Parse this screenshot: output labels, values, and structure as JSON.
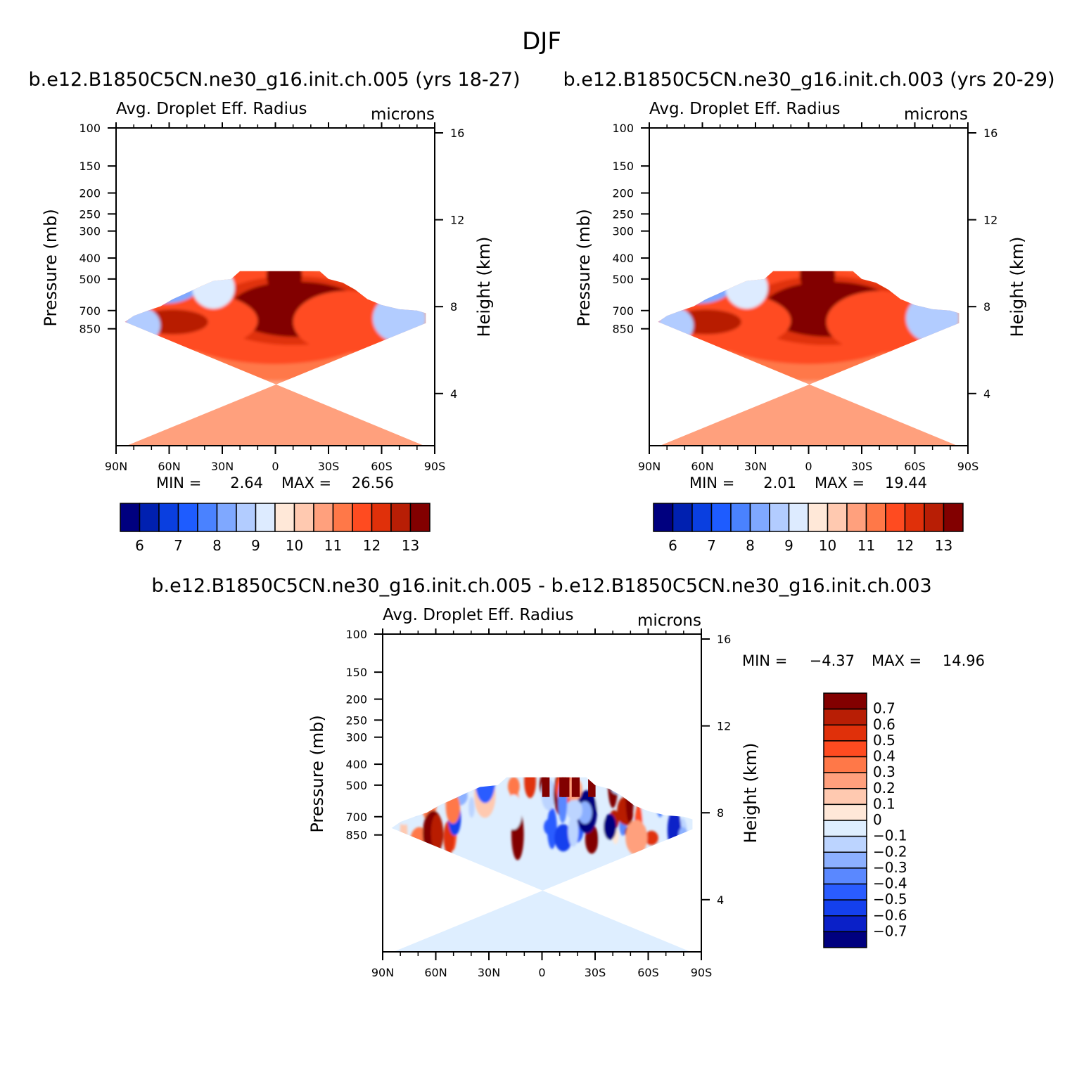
{
  "figure_title": "DJF",
  "colors": {
    "abs_scale": [
      "#00007f",
      "#0020b0",
      "#0a3fe0",
      "#1e5cff",
      "#4a82ff",
      "#7fa8ff",
      "#b2ccff",
      "#ddebff",
      "#ffe8d8",
      "#ffc9b0",
      "#ffa07d",
      "#ff7848",
      "#ff4b20",
      "#e0300a",
      "#b81e05",
      "#820000"
    ],
    "diff_scale": [
      "#00007f",
      "#0a20c8",
      "#1440ee",
      "#2a5cff",
      "#5a88ff",
      "#8cb0ff",
      "#bcd4ff",
      "#deeeff",
      "#ffe8d8",
      "#ffc9b0",
      "#ffa07d",
      "#ff7848",
      "#ff4b20",
      "#e0300a",
      "#b81e05",
      "#820000"
    ]
  },
  "chart_data": [
    {
      "type": "contour",
      "title": "b.e12.B1850C5CN.ne30_g16.init.ch.005 (yrs 18-27)",
      "subtitle_left": "Avg. Droplet Eff. Radius",
      "subtitle_right": "microns",
      "xlabel": "",
      "ylabel": "Pressure (mb)",
      "ylabel_right": "Height (km)",
      "x_ticks": [
        "90N",
        "60N",
        "30N",
        "0",
        "30S",
        "60S",
        "90S"
      ],
      "y_ticks": [
        "100",
        "150",
        "200",
        "250",
        "300",
        "400",
        "500",
        "700",
        "850"
      ],
      "y_right_ticks": [
        "16",
        "12",
        "8",
        "4"
      ],
      "ylim": [
        1000,
        100
      ],
      "scale": "log-pressure",
      "min_label": "MIN =",
      "min_value": "2.64",
      "max_label": "MAX =",
      "max_value": "26.56",
      "colorbar_labels": [
        "6",
        "7",
        "8",
        "9",
        "10",
        "11",
        "12",
        "13"
      ]
    },
    {
      "type": "contour",
      "title": "b.e12.B1850C5CN.ne30_g16.init.ch.003 (yrs 20-29)",
      "subtitle_left": "Avg. Droplet Eff. Radius",
      "subtitle_right": "microns",
      "xlabel": "",
      "ylabel": "Pressure (mb)",
      "ylabel_right": "Height (km)",
      "x_ticks": [
        "90N",
        "60N",
        "30N",
        "0",
        "30S",
        "60S",
        "90S"
      ],
      "y_ticks": [
        "100",
        "150",
        "200",
        "250",
        "300",
        "400",
        "500",
        "700",
        "850"
      ],
      "y_right_ticks": [
        "16",
        "12",
        "8",
        "4"
      ],
      "ylim": [
        1000,
        100
      ],
      "scale": "log-pressure",
      "min_label": "MIN =",
      "min_value": "2.01",
      "max_label": "MAX =",
      "max_value": "19.44",
      "colorbar_labels": [
        "6",
        "7",
        "8",
        "9",
        "10",
        "11",
        "12",
        "13"
      ]
    },
    {
      "type": "contour",
      "title": "b.e12.B1850C5CN.ne30_g16.init.ch.005 - b.e12.B1850C5CN.ne30_g16.init.ch.003",
      "subtitle_left": "Avg. Droplet Eff. Radius",
      "subtitle_right": "microns",
      "xlabel": "",
      "ylabel": "Pressure (mb)",
      "ylabel_right": "Height (km)",
      "x_ticks": [
        "90N",
        "60N",
        "30N",
        "0",
        "30S",
        "60S",
        "90S"
      ],
      "y_ticks": [
        "100",
        "150",
        "200",
        "250",
        "300",
        "400",
        "500",
        "700",
        "850"
      ],
      "y_right_ticks": [
        "16",
        "12",
        "8",
        "4"
      ],
      "ylim": [
        1000,
        100
      ],
      "scale": "log-pressure",
      "min_label": "MIN =",
      "min_value": "−4.37",
      "max_label": "MAX =",
      "max_value": "14.96",
      "colorbar_labels": [
        "0.7",
        "0.6",
        "0.5",
        "0.4",
        "0.3",
        "0.2",
        "0.1",
        "0",
        "−0.1",
        "−0.2",
        "−0.3",
        "−0.4",
        "−0.5",
        "−0.6",
        "−0.7"
      ]
    }
  ]
}
